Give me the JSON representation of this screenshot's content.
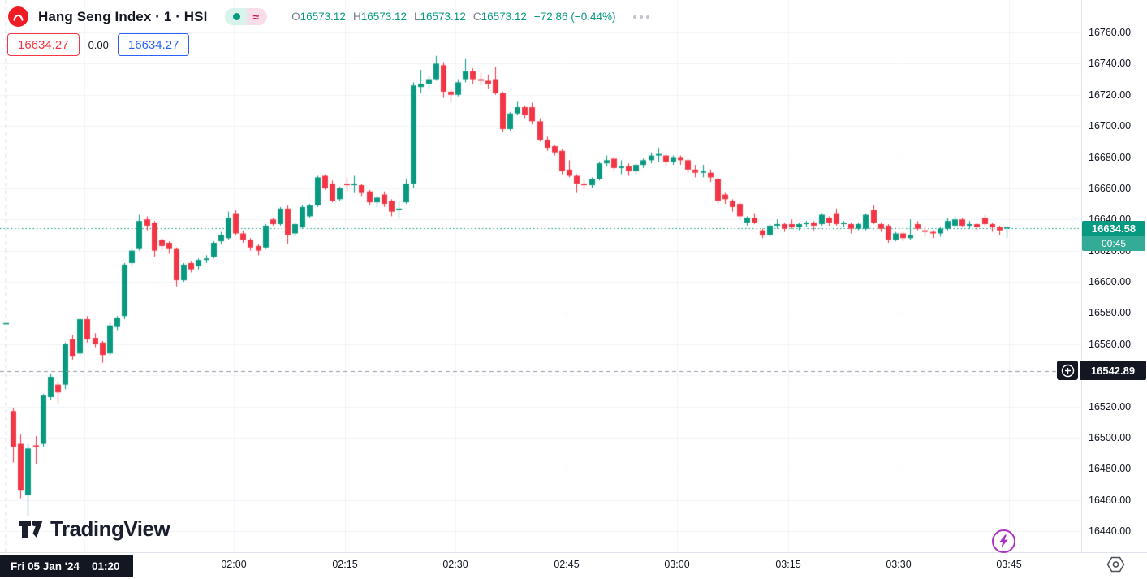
{
  "header": {
    "symbol_title": "Hang Seng Index · 1 · HSI",
    "pill": {
      "approx_symbol": "≈"
    },
    "ohlc": {
      "open_label": "O",
      "open": "16573.12",
      "high_label": "H",
      "high": "16573.12",
      "low_label": "L",
      "low": "16573.12",
      "close_label": "C",
      "close": "16573.12",
      "change": "−72.86 (−0.44%)"
    }
  },
  "quote_row": {
    "sell_price": "16634.27",
    "spread": "0.00",
    "buy_price": "16634.27"
  },
  "watermark": {
    "brand": "TradingView"
  },
  "price_axis": {
    "labels": [
      "16760.00",
      "16740.00",
      "16720.00",
      "16700.00",
      "16680.00",
      "16660.00",
      "16640.00",
      "16620.00",
      "16600.00",
      "16580.00",
      "16560.00",
      "16540.00",
      "16520.00",
      "16500.00",
      "16480.00",
      "16460.00",
      "16440.00"
    ],
    "current_price_tag": {
      "price": "16634.58",
      "countdown": "00:45"
    },
    "crosshair_tag": {
      "price": "16542.89"
    }
  },
  "time_axis": {
    "labels": [
      "02:00",
      "02:15",
      "02:30",
      "02:45",
      "03:00",
      "03:15",
      "03:30",
      "03:45"
    ],
    "crosshair_tag": {
      "date": "Fri 05 Jan '24",
      "time": "01:20"
    }
  },
  "colors": {
    "up": "#089981",
    "down": "#f23645",
    "sell": "#f23645",
    "buy": "#2962ff",
    "grid": "#f0f3fa",
    "axis_text": "#131722",
    "crosshair": "#9598a1",
    "tag_dark_bg": "#131722",
    "current_line": "#089981",
    "purple": "#ab32c4"
  },
  "chart_data": {
    "type": "candlestick",
    "symbol": "HSI",
    "interval": "1",
    "title": "Hang Seng Index",
    "visible_price_range": [
      16440,
      16760
    ],
    "price_grid_step": 20,
    "first_bar_time": "01:20",
    "regular_bars_start": "01:30",
    "last_bar_time": "03:44",
    "current_price": 16634.58,
    "countdown": "00:45",
    "crosshair_price": 16542.89,
    "crosshair_time": "Fri 05 Jan '24 01:20",
    "session_high": 16745,
    "session_low": 16450,
    "time_labels": [
      "02:00",
      "02:15",
      "02:30",
      "02:45",
      "03:00",
      "03:15",
      "03:30",
      "03:45"
    ],
    "bars": [
      [
        16573.12,
        16573.12,
        16573.12,
        16573.12
      ],
      [
        16517,
        16519,
        16484,
        16494
      ],
      [
        16496,
        16502,
        16461,
        16466
      ],
      [
        16463,
        16496,
        16450,
        16493
      ],
      [
        16495,
        16501,
        16483,
        16494
      ],
      [
        16496,
        16528,
        16494,
        16527
      ],
      [
        16526,
        16541,
        16524,
        16539
      ],
      [
        16534,
        16536,
        16522,
        16529
      ],
      [
        16534,
        16561,
        16531,
        16560
      ],
      [
        16563,
        16566,
        16550,
        16552
      ],
      [
        16554,
        16577,
        16552,
        16576
      ],
      [
        16576,
        16578,
        16561,
        16563
      ],
      [
        16564,
        16567,
        16558,
        16560
      ],
      [
        16561,
        16562,
        16548,
        16553
      ],
      [
        16554,
        16574,
        16552,
        16572
      ],
      [
        16571,
        16578,
        16569,
        16577
      ],
      [
        16578,
        16612,
        16576,
        16611
      ],
      [
        16612,
        16621,
        16610,
        16620
      ],
      [
        16621,
        16643,
        16620,
        16639
      ],
      [
        16640,
        16642,
        16633,
        16636
      ],
      [
        16638,
        16639,
        16616,
        16620
      ],
      [
        16627,
        16628,
        16620,
        16623
      ],
      [
        16625,
        16626,
        16618,
        16621
      ],
      [
        16621,
        16622,
        16597,
        16601
      ],
      [
        16601,
        16612,
        16600,
        16611
      ],
      [
        16612,
        16613,
        16606,
        16608
      ],
      [
        16610,
        16615,
        16608,
        16614
      ],
      [
        16614,
        16617,
        16612,
        16615
      ],
      [
        16616,
        16626,
        16615,
        16625
      ],
      [
        16626,
        16632,
        16624,
        16630
      ],
      [
        16628,
        16645,
        16627,
        16641
      ],
      [
        16644,
        16646,
        16630,
        16631
      ],
      [
        16631,
        16633,
        16625,
        16627
      ],
      [
        16627,
        16628,
        16620,
        16622
      ],
      [
        16623,
        16624,
        16617,
        16620
      ],
      [
        16622,
        16637,
        16621,
        16636
      ],
      [
        16640,
        16641,
        16636,
        16637
      ],
      [
        16637,
        16648,
        16636,
        16647
      ],
      [
        16647,
        16649,
        16624,
        16630
      ],
      [
        16631,
        16638,
        16629,
        16637
      ],
      [
        16635,
        16649,
        16634,
        16648
      ],
      [
        16642,
        16650,
        16641,
        16649
      ],
      [
        16649,
        16668,
        16648,
        16667
      ],
      [
        16668,
        16669,
        16659,
        16660
      ],
      [
        16663,
        16665,
        16651,
        16652
      ],
      [
        16653,
        16661,
        16652,
        16660
      ],
      [
        16663,
        16667,
        16658,
        16662
      ],
      [
        16662,
        16668,
        16657,
        16663
      ],
      [
        16662,
        16663,
        16655,
        16657
      ],
      [
        16658,
        16659,
        16649,
        16651
      ],
      [
        16651,
        16655,
        16648,
        16654
      ],
      [
        16656,
        16658,
        16648,
        16650
      ],
      [
        16652,
        16653,
        16642,
        16645
      ],
      [
        16646,
        16652,
        16641,
        16647
      ],
      [
        16651,
        16666,
        16650,
        16663
      ],
      [
        16663,
        16728,
        16660,
        16726
      ],
      [
        16725,
        16736,
        16721,
        16727
      ],
      [
        16727,
        16732,
        16724,
        16730
      ],
      [
        16730,
        16745,
        16729,
        16740
      ],
      [
        16739,
        16741,
        16718,
        16722
      ],
      [
        16722,
        16724,
        16715,
        16720
      ],
      [
        16720,
        16730,
        16719,
        16728
      ],
      [
        16730,
        16743,
        16728,
        16735
      ],
      [
        16735,
        16737,
        16727,
        16730
      ],
      [
        16730,
        16734,
        16726,
        16729
      ],
      [
        16729,
        16733,
        16724,
        16727
      ],
      [
        16730,
        16738,
        16720,
        16721
      ],
      [
        16721,
        16722,
        16696,
        16698
      ],
      [
        16698,
        16709,
        16697,
        16708
      ],
      [
        16708,
        16716,
        16707,
        16712
      ],
      [
        16712,
        16713,
        16705,
        16707
      ],
      [
        16712,
        16715,
        16701,
        16703
      ],
      [
        16703,
        16705,
        16690,
        16691
      ],
      [
        16691,
        16693,
        16684,
        16686
      ],
      [
        16687,
        16688,
        16681,
        16683
      ],
      [
        16684,
        16685,
        16669,
        16671
      ],
      [
        16672,
        16678,
        16667,
        16668
      ],
      [
        16668,
        16669,
        16657,
        16663
      ],
      [
        16663,
        16666,
        16659,
        16662
      ],
      [
        16662,
        16667,
        16660,
        16666
      ],
      [
        16666,
        16677,
        16665,
        16676
      ],
      [
        16676,
        16681,
        16674,
        16678
      ],
      [
        16679,
        16680,
        16671,
        16673
      ],
      [
        16673,
        16678,
        16669,
        16674
      ],
      [
        16674,
        16676,
        16668,
        16671
      ],
      [
        16671,
        16676,
        16669,
        16675
      ],
      [
        16675,
        16679,
        16673,
        16678
      ],
      [
        16678,
        16683,
        16676,
        16681
      ],
      [
        16681,
        16686,
        16677,
        16682
      ],
      [
        16681,
        16682,
        16674,
        16677
      ],
      [
        16677,
        16681,
        16675,
        16680
      ],
      [
        16680,
        16681,
        16675,
        16678
      ],
      [
        16678,
        16679,
        16670,
        16672
      ],
      [
        16672,
        16675,
        16667,
        16670
      ],
      [
        16670,
        16675,
        16667,
        16671
      ],
      [
        16670,
        16672,
        16664,
        16667
      ],
      [
        16666,
        16667,
        16650,
        16652
      ],
      [
        16656,
        16657,
        16650,
        16653
      ],
      [
        16652,
        16653,
        16645,
        16648
      ],
      [
        16650,
        16651,
        16640,
        16642
      ],
      [
        16638,
        16642,
        16636,
        16641
      ],
      [
        16641,
        16644,
        16637,
        16638
      ],
      [
        16633,
        16634,
        16628,
        16630
      ],
      [
        16630,
        16637,
        16629,
        16636
      ],
      [
        16636,
        16640,
        16634,
        16637
      ],
      [
        16637,
        16638,
        16632,
        16634
      ],
      [
        16637,
        16640,
        16634,
        16635
      ],
      [
        16635,
        16638,
        16633,
        16637
      ],
      [
        16637,
        16639,
        16635,
        16638
      ],
      [
        16638,
        16639,
        16633,
        16636
      ],
      [
        16637,
        16644,
        16636,
        16643
      ],
      [
        16641,
        16642,
        16636,
        16638
      ],
      [
        16644,
        16647,
        16636,
        16637
      ],
      [
        16637,
        16639,
        16635,
        16638
      ],
      [
        16637,
        16638,
        16631,
        16634
      ],
      [
        16634,
        16638,
        16633,
        16637
      ],
      [
        16634,
        16644,
        16633,
        16643
      ],
      [
        16646,
        16649,
        16637,
        16638
      ],
      [
        16637,
        16638,
        16632,
        16634
      ],
      [
        16636,
        16637,
        16625,
        16627
      ],
      [
        16627,
        16632,
        16626,
        16631
      ],
      [
        16631,
        16632,
        16626,
        16628
      ],
      [
        16628,
        16640,
        16627,
        16630
      ],
      [
        16637,
        16639,
        16633,
        16634
      ],
      [
        16633,
        16636,
        16629,
        16632
      ],
      [
        16632,
        16633,
        16628,
        16631
      ],
      [
        16631,
        16635,
        16629,
        16634
      ],
      [
        16634,
        16641,
        16633,
        16639
      ],
      [
        16636,
        16642,
        16635,
        16640
      ],
      [
        16640,
        16641,
        16635,
        16636
      ],
      [
        16636,
        16639,
        16634,
        16637
      ],
      [
        16637,
        16638,
        16632,
        16635
      ],
      [
        16641,
        16643,
        16636,
        16637
      ],
      [
        16637,
        16638,
        16632,
        16635
      ],
      [
        16635,
        16636,
        16630,
        16633
      ],
      [
        16634,
        16636,
        16628,
        16634.58
      ]
    ]
  }
}
